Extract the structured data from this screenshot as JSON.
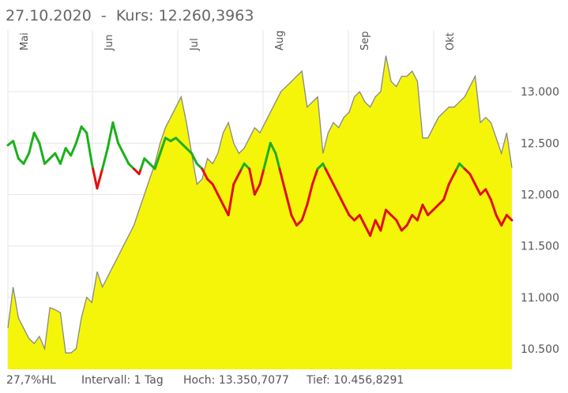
{
  "header": {
    "date": "27.10.2020",
    "separator": "-",
    "kurs_label": "Kurs:",
    "kurs_value": "12.260,3963"
  },
  "footer": {
    "indicator": "27,7%HL",
    "interval": "Intervall: 1 Tag",
    "high": "Hoch: 13.350,7077",
    "low": "Tief: 10.456,8291"
  },
  "colors": {
    "area_fill": "#f5f50a",
    "area_line": "#888888",
    "indicator_up": "#1cb01c",
    "indicator_down": "#e01010",
    "grid": "#e6e6e6"
  },
  "chart_data": {
    "type": "area",
    "months": [
      "Mai",
      "Jun",
      "Jul",
      "Aug",
      "Sep",
      "Okt"
    ],
    "y_ticks": [
      "13.000",
      "12.500",
      "12.000",
      "11.500",
      "11.000",
      "10.500"
    ],
    "y_tick_values": [
      13000,
      12500,
      12000,
      11500,
      11000,
      10500
    ],
    "ylim": [
      10300,
      13600
    ],
    "indicator_threshold": 12250,
    "grid": true,
    "series": [
      {
        "values": [
          10700,
          11100,
          10800,
          10700,
          10600,
          10550,
          10620,
          10500,
          10900,
          10880,
          10850,
          10460,
          10460,
          10500,
          10800,
          11000,
          10950,
          11250,
          11100,
          11200,
          11300,
          11400,
          11500,
          11600,
          11700,
          11850,
          12000,
          12150,
          12300,
          12500,
          12650,
          12750,
          12850,
          12950,
          12700,
          12400,
          12100,
          12150,
          12350,
          12300,
          12400,
          12600,
          12700,
          12500,
          12400,
          12450,
          12550,
          12650,
          12600,
          12700,
          12800,
          12900,
          13000,
          13050,
          13100,
          13150,
          13200,
          12850,
          12900,
          12950,
          12400,
          12600,
          12700,
          12650,
          12750,
          12800,
          12950,
          13000,
          12900,
          12850,
          12950,
          13000,
          13350,
          13100,
          13050,
          13150,
          13150,
          13200,
          13100,
          12550,
          12550,
          12650,
          12750,
          12800,
          12850,
          12850,
          12900,
          12950,
          13050,
          13150,
          12700,
          12750,
          12700,
          12550,
          12400,
          12600,
          12260
        ]
      },
      {
        "values": [
          12480,
          12520,
          12350,
          12300,
          12400,
          12600,
          12500,
          12300,
          12350,
          12400,
          12300,
          12450,
          12380,
          12500,
          12660,
          12600,
          12300,
          12060,
          12250,
          12450,
          12700,
          12500,
          12400,
          12300,
          12250,
          12200,
          12350,
          12300,
          12250,
          12400,
          12550,
          12520,
          12550,
          12500,
          12450,
          12400,
          12300,
          12250,
          12150,
          12100,
          12000,
          11900,
          11800,
          12100,
          12200,
          12300,
          12250,
          12000,
          12100,
          12300,
          12500,
          12400,
          12200,
          12000,
          11800,
          11700,
          11750,
          11900,
          12100,
          12250,
          12300,
          12200,
          12100,
          12000,
          11900,
          11800,
          11750,
          11800,
          11700,
          11600,
          11750,
          11650,
          11850,
          11800,
          11750,
          11650,
          11700,
          11800,
          11750,
          11900,
          11800,
          11850,
          11900,
          11950,
          12100,
          12200,
          12300,
          12250,
          12200,
          12100,
          12000,
          12050,
          11950,
          11800,
          11700,
          11800,
          11750
        ]
      }
    ]
  }
}
